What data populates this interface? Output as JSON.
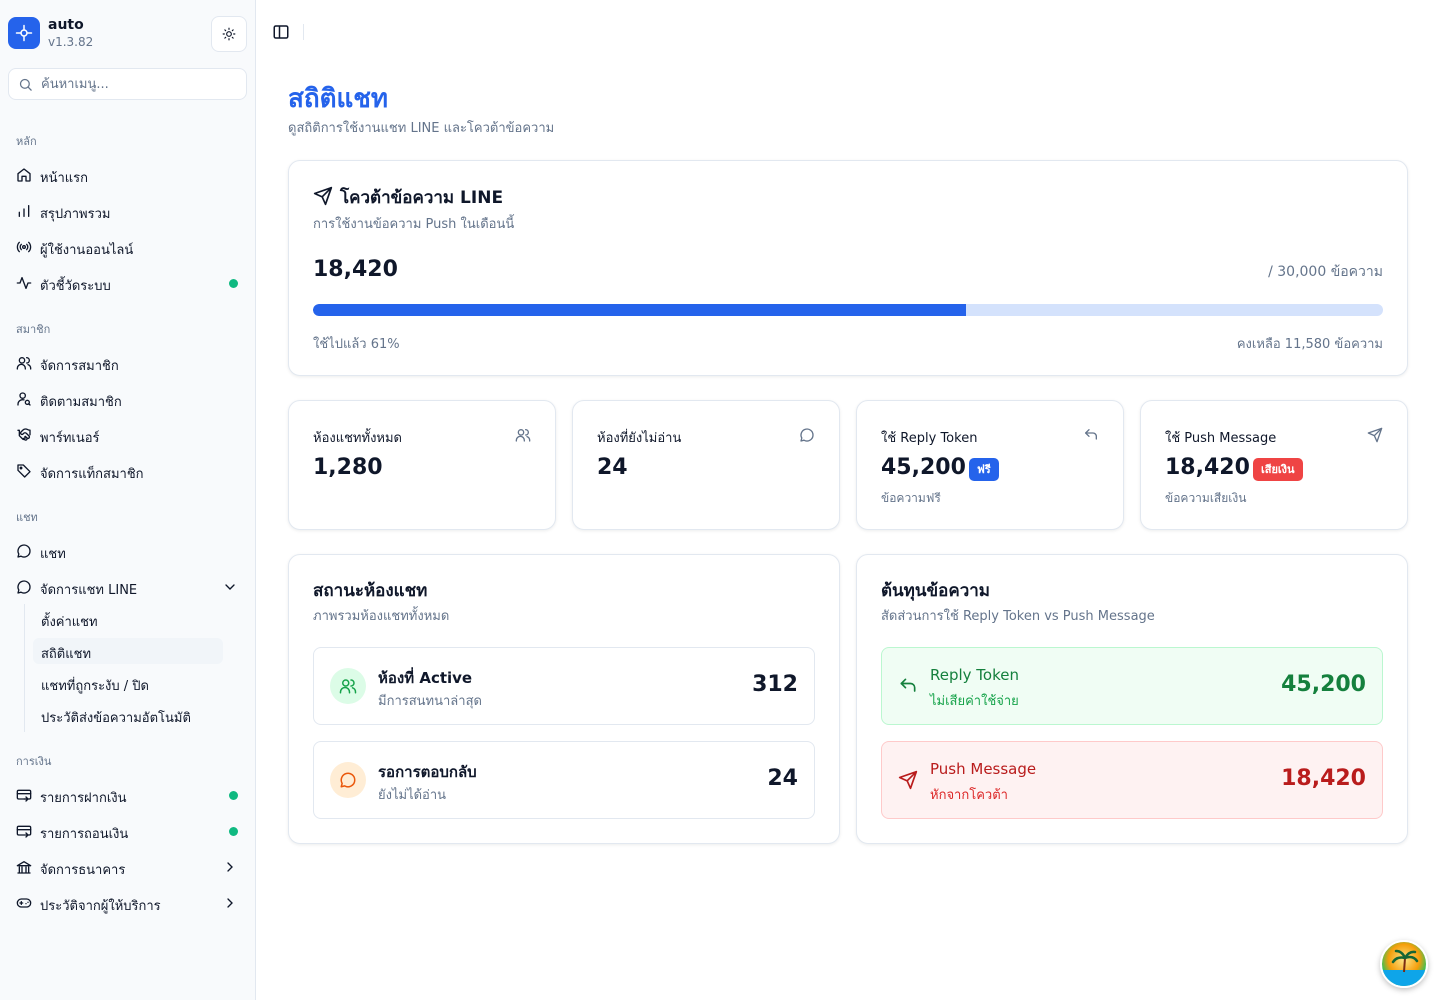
{
  "app": {
    "name": "auto",
    "version": "v1.3.82"
  },
  "search": {
    "placeholder": "ค้นหาเมนู..."
  },
  "sidebar": {
    "groups": [
      {
        "label": "หลัก",
        "items": [
          {
            "label": "หน้าแรก",
            "icon": "home-icon"
          },
          {
            "label": "สรุปภาพรวม",
            "icon": "bar-chart-icon"
          },
          {
            "label": "ผู้ใช้งานออนไลน์",
            "icon": "radio-icon"
          },
          {
            "label": "ตัวชี้วัดระบบ",
            "icon": "activity-icon",
            "status": "online"
          }
        ]
      },
      {
        "label": "สมาชิก",
        "items": [
          {
            "label": "จัดการสมาชิก",
            "icon": "users-icon"
          },
          {
            "label": "ติดตามสมาชิก",
            "icon": "user-search-icon"
          },
          {
            "label": "พาร์ทเนอร์",
            "icon": "handshake-icon"
          },
          {
            "label": "จัดการแท็กสมาชิก",
            "icon": "tag-icon"
          }
        ]
      },
      {
        "label": "แชท",
        "items": [
          {
            "label": "แชท",
            "icon": "message-circle-icon"
          },
          {
            "label": "จัดการแชท LINE",
            "icon": "message-circle-icon",
            "expanded": true,
            "children": [
              {
                "label": "ตั้งค่าแชท"
              },
              {
                "label": "สถิติแชท",
                "active": true
              },
              {
                "label": "แชทที่ถูกระงับ / ปิด"
              },
              {
                "label": "ประวัติส่งข้อความอัตโนมัติ"
              }
            ]
          }
        ]
      },
      {
        "label": "การเงิน",
        "items": [
          {
            "label": "รายการฝากเงิน",
            "icon": "deposit-icon",
            "status": "online"
          },
          {
            "label": "รายการถอนเงิน",
            "icon": "withdraw-icon",
            "status": "online"
          },
          {
            "label": "จัดการธนาคาร",
            "icon": "bank-icon"
          },
          {
            "label": "ประวัติจากผู้ให้บริการ",
            "icon": "gamepad-icon"
          }
        ]
      }
    ]
  },
  "page": {
    "title": "สถิติแชท",
    "subtitle": "ดูสถิติการใช้งานแชท LINE และโควต้าข้อความ"
  },
  "quota": {
    "title": "โควต้าข้อความ LINE",
    "subtitle": "การใช้งานข้อความ Push ในเดือนนี้",
    "used": "18,420",
    "total": "/ 30,000 ข้อความ",
    "percent_used": 61,
    "used_text": "ใช้ไปแล้ว 61%",
    "remaining_text": "คงเหลือ 11,580 ข้อความ"
  },
  "stats": [
    {
      "label": "ห้องแชททั้งหมด",
      "value": "1,280",
      "icon": "users-icon"
    },
    {
      "label": "ห้องที่ยังไม่อ่าน",
      "value": "24",
      "icon": "message-circle-icon"
    },
    {
      "label": "ใช้ Reply Token",
      "value": "45,200",
      "badge": "ฟรี",
      "badge_color": "#2563eb",
      "sub": "ข้อความฟรี",
      "icon": "reply-icon"
    },
    {
      "label": "ใช้ Push Message",
      "value": "18,420",
      "badge": "เสียเงิน",
      "badge_color": "#ef4444",
      "sub": "ข้อความเสียเงิน",
      "icon": "send-icon"
    }
  ],
  "room_status": {
    "title": "สถานะห้องแชท",
    "subtitle": "ภาพรวมห้องแชททั้งหมด",
    "rows": [
      {
        "title": "ห้องที่ Active",
        "sub": "มีการสนทนาล่าสุด",
        "value": "312"
      },
      {
        "title": "รอการตอบกลับ",
        "sub": "ยังไม่ได้อ่าน",
        "value": "24"
      }
    ]
  },
  "cost": {
    "title": "ต้นทุนข้อความ",
    "subtitle": "สัดส่วนการใช้ Reply Token vs Push Message",
    "rows": [
      {
        "title": "Reply Token",
        "sub": "ไม่เสียค่าใช้จ่าย",
        "value": "45,200",
        "color": "#15803d",
        "bg": "#f0fdf4"
      },
      {
        "title": "Push Message",
        "sub": "หักจากโควต้า",
        "value": "18,420",
        "color": "#b91c1c",
        "bg": "#fef2f2"
      }
    ]
  },
  "colors": {
    "primary": "#2563eb",
    "success": "#10b981",
    "danger": "#ef4444"
  }
}
